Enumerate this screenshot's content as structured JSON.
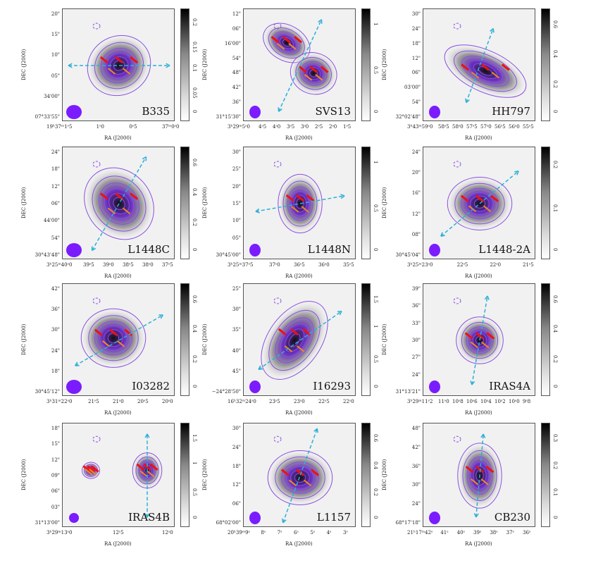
{
  "figure": {
    "ra_axis_label": "RA (J2000)",
    "dec_axis_label": "DEC (J2000)",
    "colors": {
      "contour": "#8a4fe0",
      "beam": "#7b1cff",
      "outflow": "#2bb0d8",
      "vector_red": "#ee1111",
      "vector_orange": "#f08a1a",
      "colormap": "greyscale"
    },
    "panels": [
      {
        "name": "B335",
        "dec_ticks": [
          "20\"",
          "15\"",
          "10\"",
          "05\"",
          "34'00\"",
          "07°33'55\""
        ],
        "ra_ticks": [
          "19ʰ37ᵐ1ˢ5",
          "1ˢ0",
          "0ˢ5",
          "37ᵐ0ˢ0"
        ],
        "colorbar_ticks": [
          "0",
          "0.05",
          "0.1",
          "0.15",
          "0.2"
        ]
      },
      {
        "name": "SVS13",
        "dec_ticks": [
          "12\"",
          "06\"",
          "16'00\"",
          "54\"",
          "48\"",
          "42\"",
          "36\"",
          "31°15'30\""
        ],
        "ra_ticks": [
          "3ʰ29ᵐ5ˢ0",
          "4ˢ5",
          "4ˢ0",
          "3ˢ5",
          "3ˢ0",
          "2ˢ5",
          "2ˢ0",
          "1ˢ5"
        ],
        "colorbar_ticks": [
          "0",
          "0.5",
          "1"
        ]
      },
      {
        "name": "HH797",
        "dec_ticks": [
          "30\"",
          "24\"",
          "18\"",
          "12\"",
          "06\"",
          "03'00\"",
          "54\"",
          "32°02'48\""
        ],
        "ra_ticks": [
          "3ʰ43ᵐ59ˢ0",
          "58ˢ5",
          "58ˢ0",
          "57ˢ5",
          "57ˢ0",
          "56ˢ5",
          "56ˢ0",
          "55ˢ5"
        ],
        "colorbar_ticks": [
          "0",
          "0.2",
          "0.4",
          "0.6"
        ]
      },
      {
        "name": "L1448C",
        "dec_ticks": [
          "24\"",
          "18\"",
          "12\"",
          "06\"",
          "44'00\"",
          "54\"",
          "30°43'48\""
        ],
        "ra_ticks": [
          "3ʰ25ᵐ40ˢ0",
          "39ˢ5",
          "39ˢ0",
          "38ˢ5",
          "38ˢ0",
          "37ˢ5"
        ],
        "colorbar_ticks": [
          "0",
          "0.2",
          "0.4",
          "0.6"
        ]
      },
      {
        "name": "L1448N",
        "dec_ticks": [
          "30\"",
          "25\"",
          "20\"",
          "15\"",
          "10\"",
          "05\"",
          "30°45'00\""
        ],
        "ra_ticks": [
          "3ʰ25ᵐ37ˢ5",
          "37ˢ0",
          "36ˢ5",
          "36ˢ0",
          "35ˢ5"
        ],
        "colorbar_ticks": [
          "0",
          "0.5",
          "1"
        ]
      },
      {
        "name": "L1448-2A",
        "dec_ticks": [
          "24\"",
          "20\"",
          "16\"",
          "12\"",
          "08\"",
          "30°45'04\""
        ],
        "ra_ticks": [
          "3ʰ25ᵐ23ˢ0",
          "22ˢ5",
          "22ˢ0",
          "21ˢ5"
        ],
        "colorbar_ticks": [
          "0",
          "0.1",
          "0.2"
        ]
      },
      {
        "name": "I03282",
        "dec_ticks": [
          "42\"",
          "36\"",
          "30\"",
          "24\"",
          "18\"",
          "30°45'12\""
        ],
        "ra_ticks": [
          "3ʰ31ᵐ22ˢ0",
          "21ˢ5",
          "21ˢ0",
          "20ˢ5",
          "20ˢ0"
        ],
        "colorbar_ticks": [
          "0",
          "0.2",
          "0.4",
          "0.6"
        ]
      },
      {
        "name": "I16293",
        "dec_ticks": [
          "25\"",
          "30\"",
          "35\"",
          "40\"",
          "45\"",
          "−24°28'50\""
        ],
        "ra_ticks": [
          "16ʰ32ᵐ24ˢ0",
          "23ˢ5",
          "23ˢ0",
          "22ˢ5",
          "22ˢ0"
        ],
        "colorbar_ticks": [
          "0",
          "0.5",
          "1",
          "1.5"
        ]
      },
      {
        "name": "IRAS4A",
        "dec_ticks": [
          "39\"",
          "36\"",
          "33\"",
          "30\"",
          "27\"",
          "24\"",
          "31°13'21\""
        ],
        "ra_ticks": [
          "3ʰ29ᵐ11ˢ2",
          "11ˢ0",
          "10ˢ8",
          "10ˢ6",
          "10ˢ4",
          "10ˢ2",
          "10ˢ0",
          "9ˢ8"
        ],
        "colorbar_ticks": [
          "0",
          "0.2",
          "0.4",
          "0.6"
        ]
      },
      {
        "name": "IRAS4B",
        "dec_ticks": [
          "18\"",
          "15\"",
          "12\"",
          "09\"",
          "06\"",
          "03\"",
          "31°13'00\""
        ],
        "ra_ticks": [
          "3ʰ29ᵐ13ˢ0",
          "12ˢ5",
          "12ˢ0"
        ],
        "colorbar_ticks": [
          "0",
          "0.5",
          "1",
          "1.5"
        ]
      },
      {
        "name": "L1157",
        "dec_ticks": [
          "30\"",
          "24\"",
          "18\"",
          "12\"",
          "06\"",
          "68°02'00\""
        ],
        "ra_ticks": [
          "20ʰ39ᵐ9ˢ",
          "8ˢ",
          "7ˢ",
          "6ˢ",
          "5ˢ",
          "4ˢ",
          "3ˢ"
        ],
        "colorbar_ticks": [
          "0",
          "0.2",
          "0.4",
          "0.6"
        ]
      },
      {
        "name": "CB230",
        "dec_ticks": [
          "48\"",
          "42\"",
          "36\"",
          "30\"",
          "24\"",
          "68°17'18\""
        ],
        "ra_ticks": [
          "21ʰ17ᵐ42ˢ",
          "41ˢ",
          "40ˢ",
          "39ˢ",
          "38ˢ",
          "37ˢ",
          "36ˢ"
        ],
        "colorbar_ticks": [
          "0",
          "0.1",
          "0.2",
          "0.3"
        ]
      }
    ]
  }
}
